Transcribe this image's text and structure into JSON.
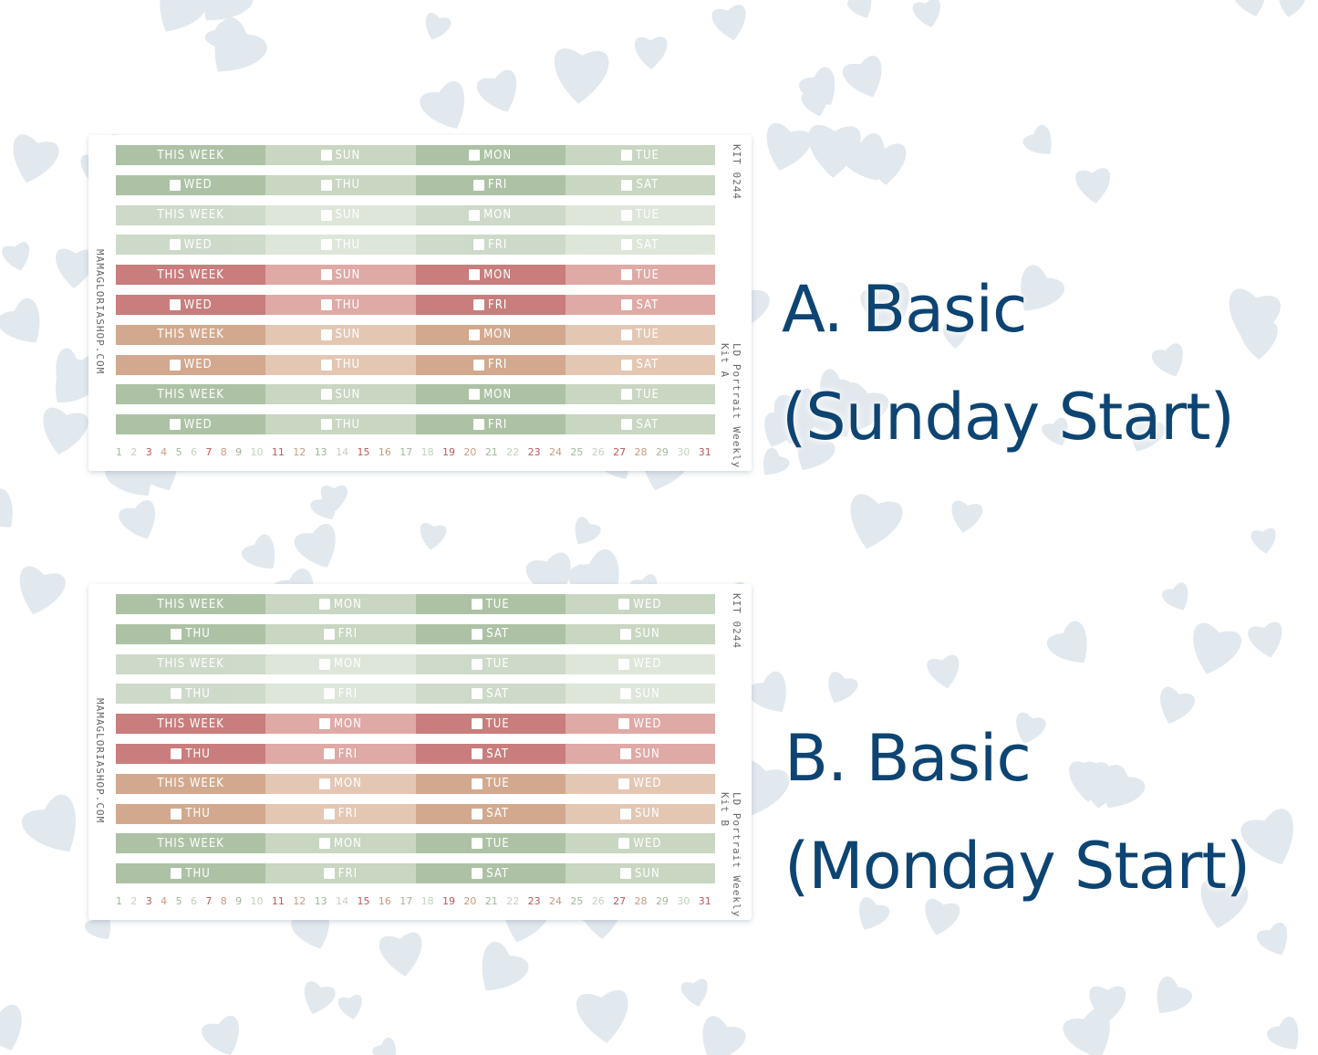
{
  "colors": {
    "title": "#0d4472",
    "background_hearts": "#e1e8ee",
    "palettes": [
      [
        "#adc2a5",
        "#c8d6c2"
      ],
      [
        "#cbd8c7",
        "#dce5d8"
      ],
      [
        "#c97d7c",
        "#dfa9a6"
      ],
      [
        "#d2a98e",
        "#e3c7b3"
      ],
      [
        "#adc2a5",
        "#c8d6c2"
      ]
    ],
    "number_colors": [
      "#9fb89a",
      "#c3d1bf",
      "#c0585a",
      "#c99a7c"
    ]
  },
  "sheets": [
    {
      "kit_code": "KIT 0244",
      "kit_name": "LD Portrait Weekly Kit A",
      "shop": "MAMAGLORIASHOP.COM",
      "title_line1": "A. Basic",
      "title_line2": "(Sunday Start)",
      "week_rows": [
        [
          "THIS WEEK",
          "SUN",
          "MON",
          "TUE"
        ],
        [
          "WED",
          "THU",
          "FRI",
          "SAT"
        ]
      ]
    },
    {
      "kit_code": "KIT 0244",
      "kit_name": "LD Portrait Weekly Kit B",
      "shop": "MAMAGLORIASHOP.COM",
      "title_line1": "B. Basic",
      "title_line2": "(Monday Start)",
      "week_rows": [
        [
          "THIS WEEK",
          "MON",
          "TUE",
          "WED"
        ],
        [
          "THU",
          "FRI",
          "SAT",
          "SUN"
        ]
      ]
    }
  ],
  "dates": [
    "1",
    "2",
    "3",
    "4",
    "5",
    "6",
    "7",
    "8",
    "9",
    "10",
    "11",
    "12",
    "13",
    "14",
    "15",
    "16",
    "17",
    "18",
    "19",
    "20",
    "21",
    "22",
    "23",
    "24",
    "25",
    "26",
    "27",
    "28",
    "29",
    "30",
    "31"
  ]
}
